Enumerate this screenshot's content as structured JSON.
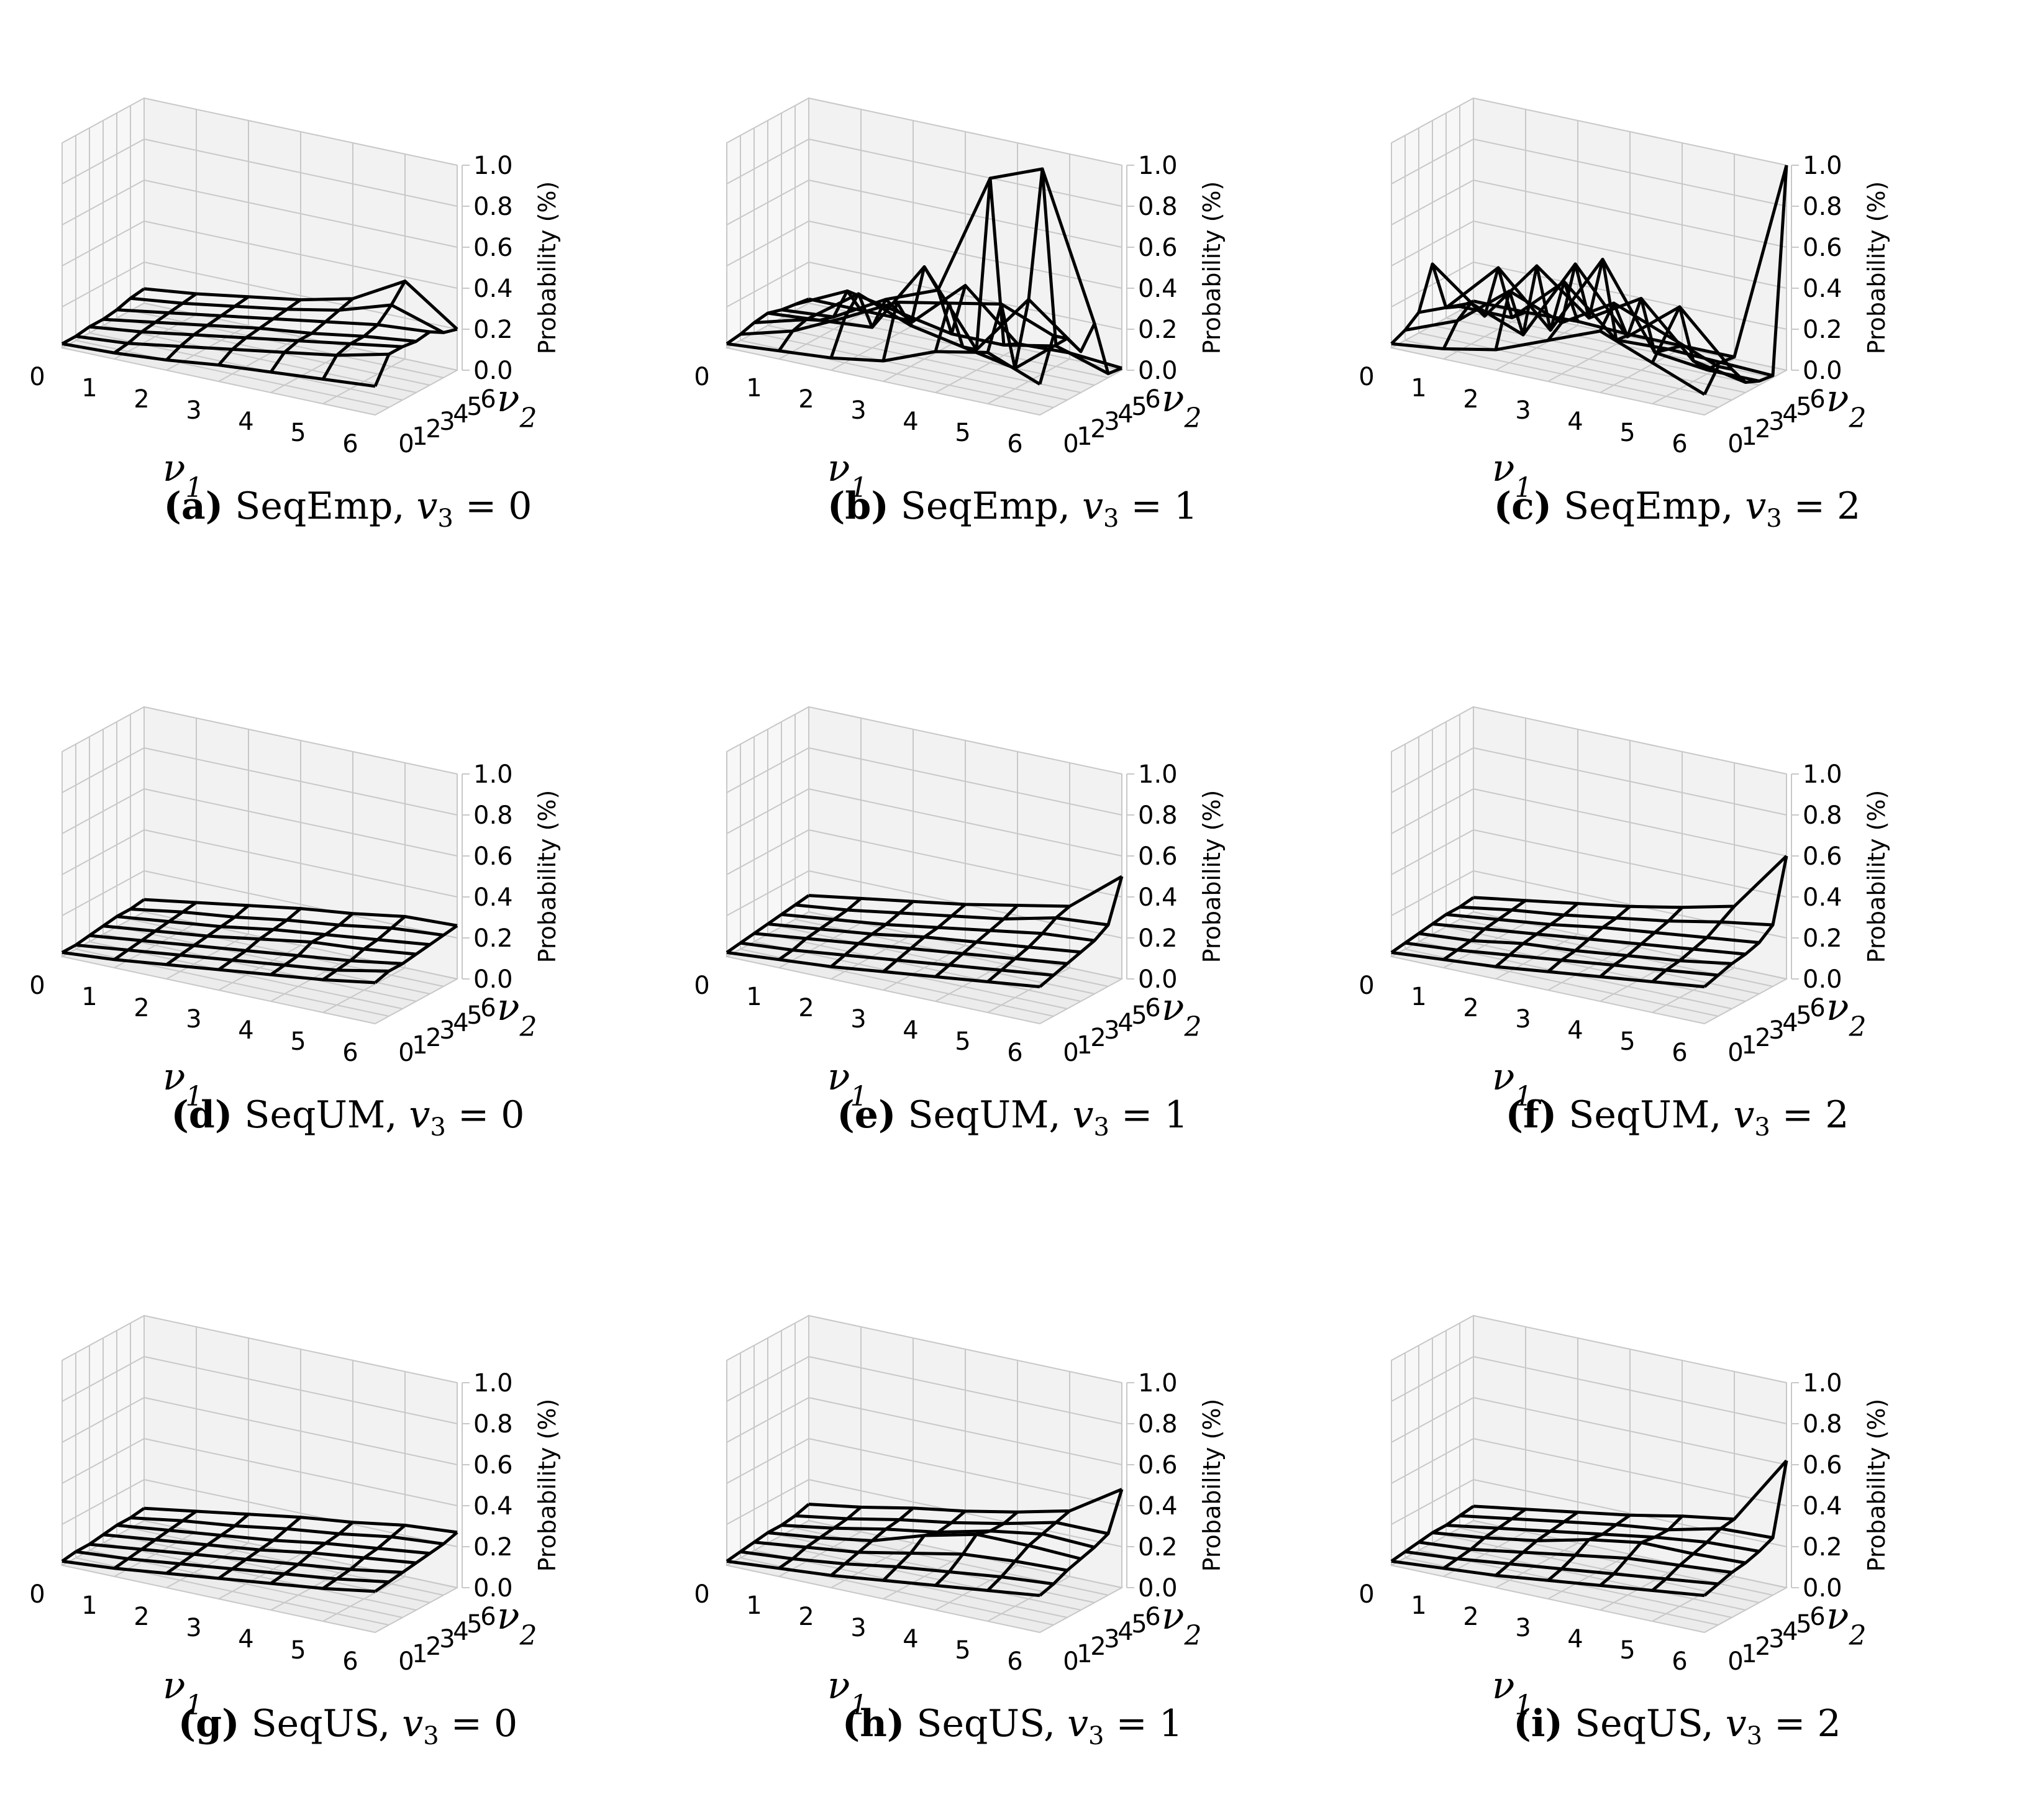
{
  "figure": {
    "grid_size": 7,
    "z_axis_title": "Probability (%)",
    "z_ticks": [
      "0.0",
      "0.2",
      "0.4",
      "0.6",
      "0.8",
      "1.0"
    ],
    "x_ticks": [
      "0",
      "1",
      "2",
      "3",
      "4",
      "5",
      "6"
    ],
    "y_ticks": [
      "0",
      "1",
      "2",
      "3",
      "4",
      "5",
      "6"
    ],
    "x_label_base": "ν",
    "x_label_sub": "1",
    "y_label_base": "ν",
    "y_label_sub": "2"
  },
  "chart_data": [
    {
      "type": "surface3d",
      "panel": "a",
      "method": "SeqEmp",
      "caption_letter": "(a)",
      "caption_method": "SeqEmp,",
      "caption_var": "v",
      "caption_sub": "3",
      "caption_value": "= 0",
      "xlabel": "ν1",
      "ylabel": "ν2",
      "zlabel": "Probability (%)",
      "zlim": [
        0,
        1
      ],
      "z": [
        [
          0.02,
          0.02,
          0.03,
          0.03,
          0.04,
          0.06,
          0.07
        ],
        [
          0.03,
          0.04,
          0.06,
          0.07,
          0.08,
          0.09,
          0.1
        ],
        [
          0.05,
          0.08,
          0.1,
          0.11,
          0.12,
          0.13,
          0.14
        ],
        [
          0.08,
          0.12,
          0.14,
          0.15,
          0.16,
          0.17,
          0.18
        ],
        [
          0.1,
          0.16,
          0.18,
          0.18,
          0.2,
          0.22,
          0.24
        ],
        [
          0.12,
          0.2,
          0.22,
          0.22,
          0.24,
          0.3,
          0.38
        ],
        [
          0.14,
          0.26,
          0.26,
          0.25,
          0.26,
          0.22,
          0.2
        ]
      ]
    },
    {
      "type": "surface3d",
      "panel": "b",
      "method": "SeqEmp",
      "caption_letter": "(b)",
      "caption_method": "SeqEmp,",
      "caption_var": "v",
      "caption_sub": "3",
      "caption_value": "= 1",
      "xlabel": "ν1",
      "ylabel": "ν2",
      "zlabel": "Probability (%)",
      "zlim": [
        0,
        1
      ],
      "z": [
        [
          0.02,
          0.03,
          0.05,
          0.06,
          0.04,
          0.03,
          0.02
        ],
        [
          0.04,
          0.1,
          0.12,
          0.08,
          0.06,
          0.15,
          0.02
        ],
        [
          0.06,
          0.22,
          0.3,
          0.1,
          0.2,
          0.1,
          0.02
        ],
        [
          0.1,
          0.35,
          0.2,
          0.45,
          0.3,
          0.05,
          0.25
        ],
        [
          0.2,
          0.4,
          0.15,
          0.1,
          0.9,
          0.05,
          0.02
        ],
        [
          0.25,
          0.45,
          0.1,
          0.4,
          1.0,
          0.1,
          0.03
        ],
        [
          0.15,
          0.35,
          0.3,
          0.2,
          0.3,
          0.02,
          0.01
        ]
      ]
    },
    {
      "type": "surface3d",
      "panel": "c",
      "method": "SeqEmp",
      "caption_letter": "(c)",
      "caption_method": "SeqEmp,",
      "caption_var": "v",
      "caption_sub": "3",
      "caption_value": "= 2",
      "xlabel": "ν1",
      "ylabel": "ν2",
      "zlabel": "Probability (%)",
      "zlim": [
        0,
        1
      ],
      "z": [
        [
          0.02,
          0.05,
          0.1,
          0.3,
          0.05,
          0.02,
          0.01
        ],
        [
          0.05,
          0.15,
          0.2,
          0.1,
          0.3,
          0.02,
          0.01
        ],
        [
          0.1,
          0.35,
          0.1,
          0.4,
          0.05,
          0.25,
          0.02
        ],
        [
          0.2,
          0.25,
          0.5,
          0.2,
          0.45,
          0.02,
          0.01
        ],
        [
          0.3,
          0.4,
          0.2,
          0.35,
          0.05,
          0.03,
          0.01
        ],
        [
          0.2,
          0.3,
          0.4,
          0.1,
          0.02,
          0.02,
          0.01
        ],
        [
          0.1,
          0.2,
          0.15,
          0.05,
          0.02,
          0.01,
          1.0
        ]
      ]
    },
    {
      "type": "surface3d",
      "panel": "d",
      "method": "SeqUM",
      "caption_letter": "(d)",
      "caption_method": "SeqUM,",
      "caption_var": "v",
      "caption_sub": "3",
      "caption_value": "= 0",
      "xlabel": "ν1",
      "ylabel": "ν2",
      "zlabel": "Probability (%)",
      "zlim": [
        0,
        1
      ],
      "z": [
        [
          0.02,
          0.02,
          0.03,
          0.04,
          0.05,
          0.05,
          0.06
        ],
        [
          0.04,
          0.05,
          0.06,
          0.07,
          0.08,
          0.09,
          0.1
        ],
        [
          0.07,
          0.08,
          0.09,
          0.1,
          0.11,
          0.12,
          0.14
        ],
        [
          0.1,
          0.11,
          0.12,
          0.14,
          0.15,
          0.16,
          0.18
        ],
        [
          0.13,
          0.14,
          0.15,
          0.18,
          0.18,
          0.19,
          0.21
        ],
        [
          0.16,
          0.17,
          0.18,
          0.2,
          0.21,
          0.23,
          0.25
        ],
        [
          0.2,
          0.22,
          0.22,
          0.23,
          0.24,
          0.25,
          0.26
        ]
      ]
    },
    {
      "type": "surface3d",
      "panel": "e",
      "method": "SeqUM",
      "caption_letter": "(e)",
      "caption_method": "SeqUM,",
      "caption_var": "v",
      "caption_sub": "3",
      "caption_value": "= 1",
      "xlabel": "ν1",
      "ylabel": "ν2",
      "zlabel": "Probability (%)",
      "zlim": [
        0,
        1
      ],
      "z": [
        [
          0.02,
          0.03,
          0.04,
          0.05,
          0.06,
          0.07,
          0.08
        ],
        [
          0.04,
          0.05,
          0.07,
          0.08,
          0.09,
          0.1,
          0.12
        ],
        [
          0.06,
          0.08,
          0.1,
          0.11,
          0.12,
          0.14,
          0.16
        ],
        [
          0.09,
          0.11,
          0.13,
          0.15,
          0.16,
          0.18,
          0.2
        ],
        [
          0.12,
          0.14,
          0.16,
          0.18,
          0.2,
          0.22,
          0.25
        ],
        [
          0.15,
          0.17,
          0.19,
          0.21,
          0.24,
          0.28,
          0.3
        ],
        [
          0.18,
          0.2,
          0.22,
          0.24,
          0.26,
          0.3,
          0.5
        ]
      ]
    },
    {
      "type": "surface3d",
      "panel": "f",
      "method": "SeqUM",
      "caption_letter": "(f)",
      "caption_method": "SeqUM,",
      "caption_var": "v",
      "caption_sub": "3",
      "caption_value": "= 2",
      "xlabel": "ν1",
      "ylabel": "ν2",
      "zlabel": "Probability (%)",
      "zlim": [
        0,
        1
      ],
      "z": [
        [
          0.02,
          0.03,
          0.04,
          0.05,
          0.06,
          0.06,
          0.07
        ],
        [
          0.04,
          0.05,
          0.06,
          0.08,
          0.09,
          0.1,
          0.11
        ],
        [
          0.06,
          0.08,
          0.1,
          0.11,
          0.12,
          0.13,
          0.15
        ],
        [
          0.09,
          0.11,
          0.12,
          0.14,
          0.16,
          0.17,
          0.19
        ],
        [
          0.12,
          0.14,
          0.15,
          0.17,
          0.19,
          0.21,
          0.24
        ],
        [
          0.15,
          0.17,
          0.18,
          0.2,
          0.22,
          0.26,
          0.3
        ],
        [
          0.18,
          0.2,
          0.22,
          0.23,
          0.25,
          0.3,
          0.6
        ]
      ]
    },
    {
      "type": "surface3d",
      "panel": "g",
      "method": "SeqUS",
      "caption_letter": "(g)",
      "caption_method": "SeqUS,",
      "caption_var": "v",
      "caption_sub": "3",
      "caption_value": "= 0",
      "xlabel": "ν1",
      "ylabel": "ν2",
      "zlabel": "Probability (%)",
      "zlim": [
        0,
        1
      ],
      "z": [
        [
          0.02,
          0.03,
          0.03,
          0.04,
          0.05,
          0.05,
          0.06
        ],
        [
          0.04,
          0.05,
          0.06,
          0.07,
          0.08,
          0.09,
          0.1
        ],
        [
          0.07,
          0.08,
          0.09,
          0.1,
          0.11,
          0.12,
          0.14
        ],
        [
          0.1,
          0.11,
          0.12,
          0.13,
          0.14,
          0.16,
          0.18
        ],
        [
          0.13,
          0.14,
          0.15,
          0.17,
          0.18,
          0.19,
          0.21
        ],
        [
          0.16,
          0.17,
          0.18,
          0.2,
          0.21,
          0.23,
          0.25
        ],
        [
          0.2,
          0.21,
          0.22,
          0.23,
          0.24,
          0.25,
          0.27
        ]
      ]
    },
    {
      "type": "surface3d",
      "panel": "h",
      "method": "SeqUS",
      "caption_letter": "(h)",
      "caption_method": "SeqUS,",
      "caption_var": "v",
      "caption_sub": "3",
      "caption_value": "= 1",
      "xlabel": "ν1",
      "ylabel": "ν2",
      "zlabel": "Probability (%)",
      "zlim": [
        0,
        1
      ],
      "z": [
        [
          0.02,
          0.03,
          0.04,
          0.05,
          0.05,
          0.06,
          0.08
        ],
        [
          0.04,
          0.05,
          0.07,
          0.08,
          0.09,
          0.1,
          0.12
        ],
        [
          0.06,
          0.08,
          0.1,
          0.12,
          0.14,
          0.15,
          0.17
        ],
        [
          0.09,
          0.12,
          0.15,
          0.2,
          0.18,
          0.19,
          0.21
        ],
        [
          0.12,
          0.15,
          0.2,
          0.26,
          0.24,
          0.24,
          0.26
        ],
        [
          0.15,
          0.18,
          0.22,
          0.26,
          0.28,
          0.3,
          0.32
        ],
        [
          0.18,
          0.2,
          0.23,
          0.25,
          0.27,
          0.3,
          0.48
        ]
      ]
    },
    {
      "type": "surface3d",
      "panel": "i",
      "method": "SeqUS",
      "caption_letter": "(i)",
      "caption_method": "SeqUS,",
      "caption_var": "v",
      "caption_sub": "3",
      "caption_value": "= 2",
      "xlabel": "ν1",
      "ylabel": "ν2",
      "zlabel": "Probability (%)",
      "zlim": [
        0,
        1
      ],
      "z": [
        [
          0.02,
          0.03,
          0.04,
          0.05,
          0.05,
          0.06,
          0.07
        ],
        [
          0.04,
          0.05,
          0.06,
          0.08,
          0.09,
          0.1,
          0.11
        ],
        [
          0.06,
          0.08,
          0.1,
          0.12,
          0.13,
          0.14,
          0.15
        ],
        [
          0.09,
          0.11,
          0.14,
          0.18,
          0.17,
          0.18,
          0.19
        ],
        [
          0.12,
          0.14,
          0.18,
          0.22,
          0.21,
          0.21,
          0.24
        ],
        [
          0.15,
          0.17,
          0.2,
          0.22,
          0.24,
          0.27,
          0.28
        ],
        [
          0.18,
          0.2,
          0.22,
          0.23,
          0.25,
          0.28,
          0.62
        ]
      ]
    }
  ]
}
